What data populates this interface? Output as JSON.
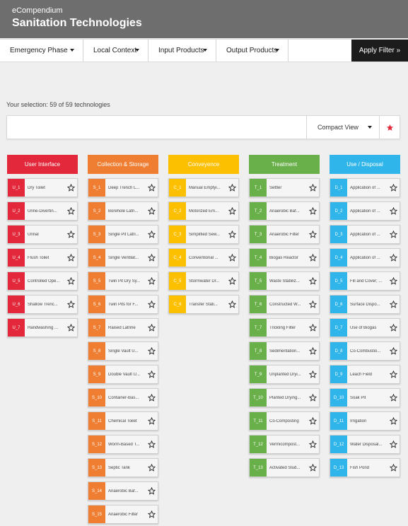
{
  "header": {
    "app_name": "eCompendium",
    "title": "Sanitation Technologies"
  },
  "filters": [
    {
      "label": "Emergency Phase"
    },
    {
      "label": "Local Context"
    },
    {
      "label": "Input Products"
    },
    {
      "label": "Output Products"
    }
  ],
  "apply_label": "Apply Filter »",
  "selection_text": "Your selection: 59 of 59 technologies",
  "search": {
    "placeholder": ""
  },
  "view_label": "Compact View",
  "colors": {
    "user_interface": "#e2283a",
    "collection_storage": "#ef7e32",
    "conveyance": "#fdc000",
    "treatment": "#69b04a",
    "use_disposal": "#2fb5ea",
    "favorite": "#e2283a"
  },
  "columns": [
    {
      "key": "user_interface",
      "title": "User Interface",
      "items": [
        {
          "code": "U_1",
          "name": "Dry Toilet"
        },
        {
          "code": "U_2",
          "name": "Urine-Divertin..."
        },
        {
          "code": "U_3",
          "name": "Urinal"
        },
        {
          "code": "U_4",
          "name": "Flush Toilet"
        },
        {
          "code": "U_5",
          "name": "Controlled Ope..."
        },
        {
          "code": "U_6",
          "name": "Shallow Trenc..."
        },
        {
          "code": "U_7",
          "name": "Handwashing ..."
        }
      ]
    },
    {
      "key": "collection_storage",
      "title": "Collection & Storage",
      "items": [
        {
          "code": "S_1",
          "name": "Deep Trench L..."
        },
        {
          "code": "S_2",
          "name": "Borehole Latri..."
        },
        {
          "code": "S_3",
          "name": "Single Pit Latri..."
        },
        {
          "code": "S_4",
          "name": "Single Ventilat..."
        },
        {
          "code": "S_5",
          "name": "Twin Pit Dry Sy..."
        },
        {
          "code": "S_6",
          "name": "Twin Pits for F..."
        },
        {
          "code": "S_7",
          "name": "Raised Latrine"
        },
        {
          "code": "S_8",
          "name": "Single Vault U..."
        },
        {
          "code": "S_9",
          "name": "Double Vault U..."
        },
        {
          "code": "S_10",
          "name": "Container-Bas..."
        },
        {
          "code": "S_11",
          "name": "Chemical Toilet"
        },
        {
          "code": "S_12",
          "name": "Worm-Based T..."
        },
        {
          "code": "S_13",
          "name": "Septic Tank"
        },
        {
          "code": "S_14",
          "name": "Anaerobic Baf..."
        },
        {
          "code": "S_15",
          "name": "Anaerobic Filter"
        }
      ]
    },
    {
      "key": "conveyance",
      "title": "Conveyence",
      "items": [
        {
          "code": "C_1",
          "name": "Manual Emptyi..."
        },
        {
          "code": "C_2",
          "name": "Motorized Em..."
        },
        {
          "code": "C_3",
          "name": "Simplified Sew..."
        },
        {
          "code": "C_4",
          "name": "Conventional ..."
        },
        {
          "code": "C_5",
          "name": "Stormwater Dr..."
        },
        {
          "code": "C_6",
          "name": "Transfer Stati..."
        }
      ]
    },
    {
      "key": "treatment",
      "title": "Treatment",
      "items": [
        {
          "code": "T_1",
          "name": "Settler"
        },
        {
          "code": "T_2",
          "name": "Anaerobic Baf..."
        },
        {
          "code": "T_3",
          "name": "Anaerobic Filter"
        },
        {
          "code": "T_4",
          "name": "Biogas Reactor"
        },
        {
          "code": "T_5",
          "name": "Waste Stabiliz..."
        },
        {
          "code": "T_6",
          "name": "Constructed W..."
        },
        {
          "code": "T_7",
          "name": "Trickling Filter"
        },
        {
          "code": "T_8",
          "name": "Sedimentation..."
        },
        {
          "code": "T_9",
          "name": "Unplanted Dryi..."
        },
        {
          "code": "T_10",
          "name": "Planted Drying..."
        },
        {
          "code": "T_11",
          "name": "Co-Composting"
        },
        {
          "code": "T_12",
          "name": "Vermicompost..."
        },
        {
          "code": "T_13",
          "name": "Activated Slud..."
        }
      ]
    },
    {
      "key": "use_disposal",
      "title": "Use / Disposal",
      "items": [
        {
          "code": "D_1",
          "name": "Application of ..."
        },
        {
          "code": "D_2",
          "name": "Application of ..."
        },
        {
          "code": "D_3",
          "name": "Application of ..."
        },
        {
          "code": "D_4",
          "name": "Application of ..."
        },
        {
          "code": "D_5",
          "name": "Fill and Cover; ..."
        },
        {
          "code": "D_6",
          "name": "Surface Dispo..."
        },
        {
          "code": "D_7",
          "name": "Use of Biogas"
        },
        {
          "code": "D_8",
          "name": "Co-Combustio..."
        },
        {
          "code": "D_9",
          "name": "Leach Field"
        },
        {
          "code": "D_10",
          "name": "Soak Pit"
        },
        {
          "code": "D_11",
          "name": "Irrigation"
        },
        {
          "code": "D_12",
          "name": "Water Disposal..."
        },
        {
          "code": "D_13",
          "name": "Fish Pond"
        }
      ]
    }
  ]
}
